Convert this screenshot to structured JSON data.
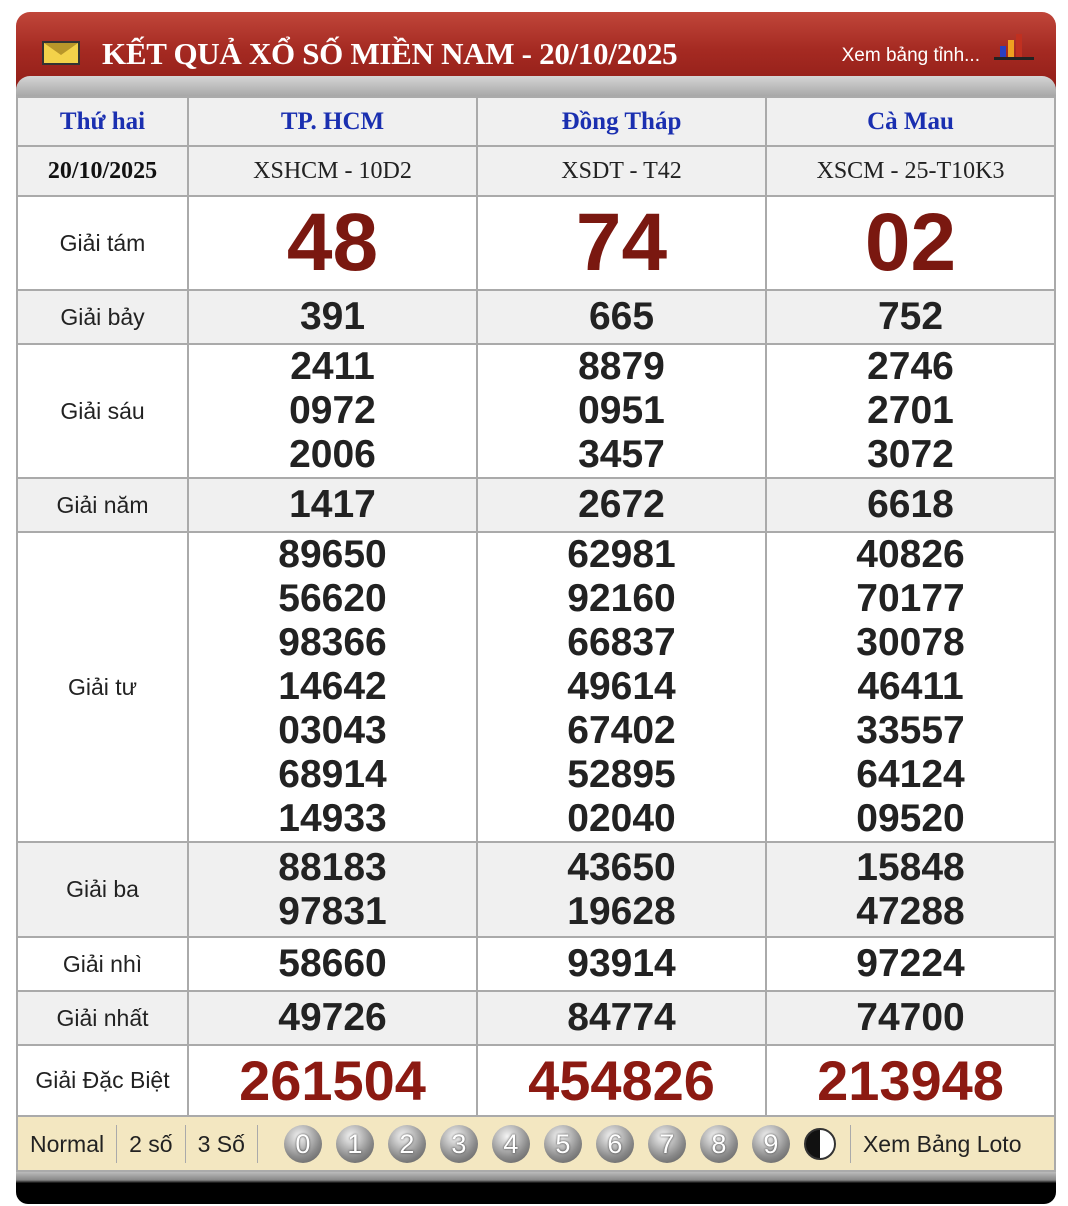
{
  "header": {
    "title": "KẾT QUẢ XỔ SỐ MIỀN NAM - 20/10/2025",
    "link": "Xem bảng tỉnh..."
  },
  "table": {
    "day": "Thứ hai",
    "date": "20/10/2025",
    "provinces": [
      "TP. HCM",
      "Đồng Tháp",
      "Cà Mau"
    ],
    "codes": [
      "XSHCM - 10D2",
      "XSDT - T42",
      "XSCM - 25-T10K3"
    ],
    "prizes": [
      {
        "label": "Giải tám",
        "values": [
          [
            "48"
          ],
          [
            "74"
          ],
          [
            "02"
          ]
        ]
      },
      {
        "label": "Giải bảy",
        "values": [
          [
            "391"
          ],
          [
            "665"
          ],
          [
            "752"
          ]
        ]
      },
      {
        "label": "Giải sáu",
        "values": [
          [
            "2411",
            "0972",
            "2006"
          ],
          [
            "8879",
            "0951",
            "3457"
          ],
          [
            "2746",
            "2701",
            "3072"
          ]
        ]
      },
      {
        "label": "Giải năm",
        "values": [
          [
            "1417"
          ],
          [
            "2672"
          ],
          [
            "6618"
          ]
        ]
      },
      {
        "label": "Giải tư",
        "values": [
          [
            "89650",
            "56620",
            "98366",
            "14642",
            "03043",
            "68914",
            "14933"
          ],
          [
            "62981",
            "92160",
            "66837",
            "49614",
            "67402",
            "52895",
            "02040"
          ],
          [
            "40826",
            "70177",
            "30078",
            "46411",
            "33557",
            "64124",
            "09520"
          ]
        ]
      },
      {
        "label": "Giải ba",
        "values": [
          [
            "88183",
            "97831"
          ],
          [
            "43650",
            "19628"
          ],
          [
            "15848",
            "47288"
          ]
        ]
      },
      {
        "label": "Giải nhì",
        "values": [
          [
            "58660"
          ],
          [
            "93914"
          ],
          [
            "97224"
          ]
        ]
      },
      {
        "label": "Giải nhất",
        "values": [
          [
            "49726"
          ],
          [
            "84774"
          ],
          [
            "74700"
          ]
        ]
      },
      {
        "label": "Giải Đặc Biệt",
        "values": [
          [
            "261504"
          ],
          [
            "454826"
          ],
          [
            "213948"
          ]
        ]
      }
    ]
  },
  "footer": {
    "modes": [
      "Normal",
      "2 số",
      "3 Số"
    ],
    "digits": [
      "0",
      "1",
      "2",
      "3",
      "4",
      "5",
      "6",
      "7",
      "8",
      "9"
    ],
    "yinyang_icon": "yin-yang-icon",
    "loto": "Xem Bảng Loto"
  },
  "colors": {
    "header_red": "#a52a22",
    "special_number": "#8c1a12",
    "province_blue": "#1a2fb0"
  }
}
